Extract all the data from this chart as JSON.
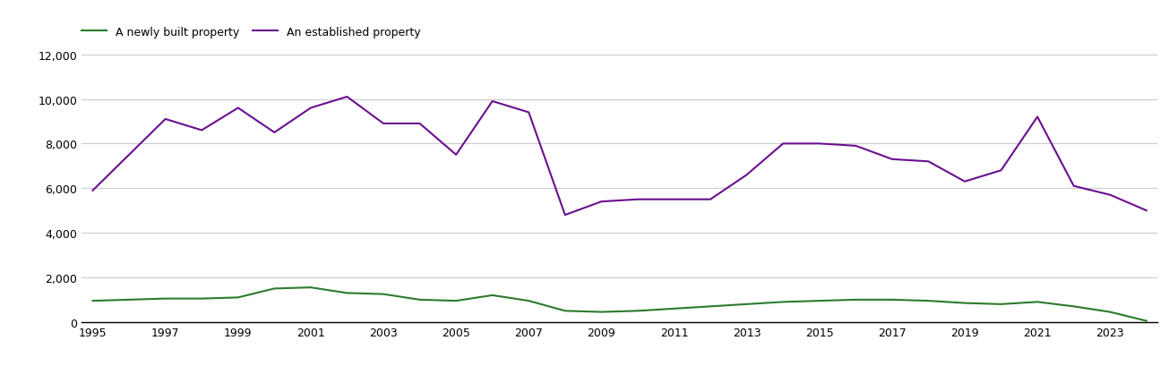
{
  "years": [
    1995,
    1996,
    1997,
    1998,
    1999,
    2000,
    2001,
    2002,
    2003,
    2004,
    2005,
    2006,
    2007,
    2008,
    2009,
    2010,
    2011,
    2012,
    2013,
    2014,
    2015,
    2016,
    2017,
    2018,
    2019,
    2020,
    2021,
    2022,
    2023,
    2024
  ],
  "new_homes": [
    950,
    1000,
    1050,
    1050,
    1100,
    1500,
    1550,
    1300,
    1250,
    1000,
    950,
    1200,
    950,
    500,
    450,
    500,
    600,
    700,
    800,
    900,
    950,
    1000,
    1000,
    950,
    850,
    800,
    900,
    700,
    450,
    50
  ],
  "established_homes": [
    5900,
    7500,
    9100,
    8600,
    9600,
    8500,
    9600,
    10100,
    8900,
    8900,
    7500,
    9900,
    9400,
    4800,
    5400,
    5500,
    5500,
    5500,
    6600,
    8000,
    8000,
    7900,
    7300,
    7200,
    6300,
    6800,
    9200,
    6100,
    5700,
    5000
  ],
  "new_color": "#2d7a2d",
  "established_color": "#6a0f8e",
  "legend_new": "A newly built property",
  "legend_established": "An established property",
  "ylim": [
    0,
    12500
  ],
  "yticks": [
    0,
    2000,
    4000,
    6000,
    8000,
    10000,
    12000
  ],
  "xtick_years": [
    1995,
    1997,
    1999,
    2001,
    2003,
    2005,
    2007,
    2009,
    2011,
    2013,
    2015,
    2017,
    2019,
    2021,
    2023
  ],
  "bg_color": "#ffffff",
  "grid_color": "#cccccc",
  "line_width": 1.5
}
